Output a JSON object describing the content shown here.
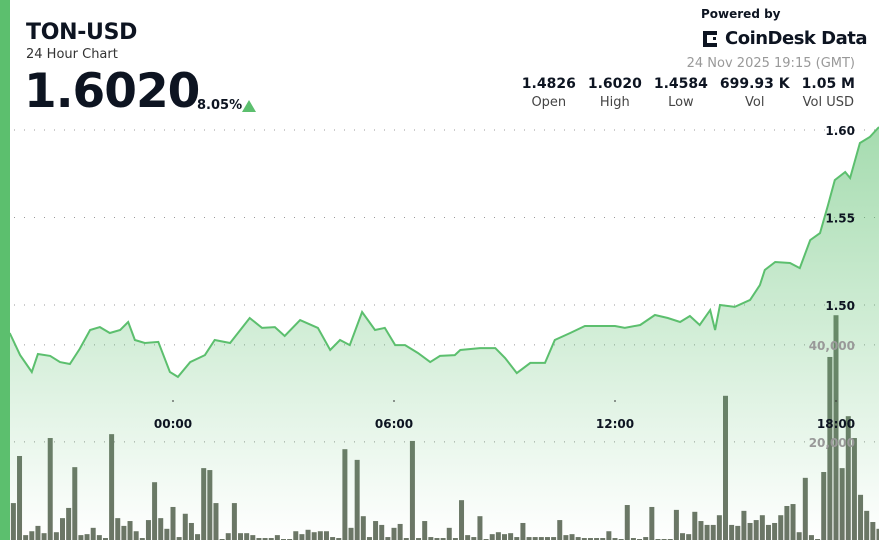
{
  "header": {
    "title": "TON-USD",
    "subtitle": "24 Hour Chart",
    "price": "1.6020",
    "change": "8.05%",
    "change_direction": "up",
    "powered_by": "Powered by",
    "brand": "CoinDesk Data",
    "timestamp": "24 Nov 2025 19:15 (GMT)",
    "stats": [
      {
        "value": "1.4826",
        "label": "Open"
      },
      {
        "value": "1.6020",
        "label": "High"
      },
      {
        "value": "1.4584",
        "label": "Low"
      },
      {
        "value": "699.93 K",
        "label": "Vol"
      },
      {
        "value": "1.05 M",
        "label": "Vol USD"
      }
    ]
  },
  "colors": {
    "accent": "#5cbf6e",
    "line": "#5cbf6e",
    "volume": "#6b7566",
    "text": "#0d1421"
  },
  "chart_data": {
    "type": "line",
    "grid": true,
    "price_axis": {
      "ticks": [
        "1.50",
        "1.55",
        "1.60"
      ],
      "tick_values": [
        1.5,
        1.55,
        1.6
      ]
    },
    "volume_axis": {
      "ticks": [
        "20,000",
        "40,000"
      ],
      "tick_values": [
        20000,
        40000
      ]
    },
    "x_ticks": [
      "00:00",
      "06:00",
      "12:00",
      "18:00"
    ],
    "price_series": {
      "times": [
        "19:34",
        "19:51",
        "20:10",
        "20:20",
        "20:40",
        "20:56",
        "21:12",
        "21:28",
        "21:45",
        "22:01",
        "22:17",
        "22:34",
        "22:47",
        "22:58",
        "23:14",
        "23:36",
        "23:55",
        "00:08",
        "00:28",
        "00:52",
        "01:08",
        "01:33",
        "02:05",
        "02:25",
        "02:46",
        "03:02",
        "03:27",
        "03:56",
        "04:16",
        "04:32",
        "04:48",
        "05:08",
        "05:29",
        "05:45",
        "06:02",
        "06:18",
        "06:39",
        "06:59",
        "07:15",
        "07:39",
        "07:48",
        "08:20",
        "08:45",
        "09:01",
        "09:20",
        "09:42",
        "10:06",
        "10:22",
        "10:47",
        "11:11",
        "11:36",
        "12:00",
        "12:16",
        "12:41",
        "13:05",
        "13:26",
        "13:46",
        "14:02",
        "14:18",
        "14:35",
        "14:43",
        "14:51",
        "15:15",
        "15:40",
        "15:56",
        "16:04",
        "16:21",
        "16:45",
        "17:01",
        "17:18",
        "17:34",
        "17:47",
        "17:58",
        "18:15",
        "18:23",
        "18:39",
        "18:55",
        "19:10"
      ],
      "values": [
        1.484,
        1.4714,
        1.4617,
        1.472,
        1.4709,
        1.4674,
        1.4663,
        1.4749,
        1.4857,
        1.4874,
        1.484,
        1.4857,
        1.4903,
        1.48,
        1.4783,
        1.4789,
        1.4617,
        1.4589,
        1.4674,
        1.4714,
        1.48,
        1.4783,
        1.4926,
        1.4869,
        1.4874,
        1.4823,
        1.4914,
        1.4869,
        1.4743,
        1.48,
        1.4771,
        1.496,
        1.4857,
        1.4869,
        1.4771,
        1.4771,
        1.4726,
        1.4674,
        1.4709,
        1.4714,
        1.4743,
        1.4754,
        1.4754,
        1.4697,
        1.4611,
        1.4669,
        1.4669,
        1.48,
        1.484,
        1.488,
        1.488,
        1.488,
        1.4869,
        1.4886,
        1.4943,
        1.4926,
        1.4903,
        1.4937,
        1.4886,
        1.4971,
        1.4857,
        1.5,
        1.4989,
        1.5029,
        1.5114,
        1.52,
        1.5246,
        1.524,
        1.5211,
        1.5371,
        1.5411,
        1.5571,
        1.5714,
        1.576,
        1.5726,
        1.5926,
        1.596,
        1.6017
      ]
    },
    "volume_series": {
      "interval_minutes": 10,
      "values": [
        1400,
        3900,
        9900,
        7400,
        17100,
        800,
        1600,
        2700,
        1200,
        20800,
        1400,
        4300,
        6400,
        14800,
        800,
        1000,
        2300,
        800,
        200,
        21600,
        4300,
        2700,
        3700,
        1600,
        200,
        3900,
        11700,
        4300,
        2100,
        6600,
        400,
        5200,
        3300,
        1000,
        14600,
        14200,
        7400,
        0,
        1200,
        7400,
        1200,
        1200,
        800,
        200,
        200,
        200,
        800,
        0,
        0,
        1600,
        1000,
        1900,
        1400,
        1600,
        1600,
        400,
        200,
        18500,
        2300,
        16300,
        4700,
        400,
        3700,
        2900,
        400,
        2300,
        3100,
        200,
        20200,
        200,
        3700,
        400,
        200,
        200,
        2300,
        200,
        8000,
        800,
        400,
        4700,
        0,
        1000,
        1400,
        1000,
        1200,
        400,
        3300,
        400,
        400,
        400,
        400,
        400,
        3900,
        800,
        1000,
        400,
        200,
        200,
        200,
        200,
        1600,
        200,
        0,
        7000,
        200,
        0,
        400,
        6600,
        0,
        0,
        0,
        6000,
        1200,
        1000,
        5600,
        3700,
        2900,
        2900,
        4900,
        29500,
        2900,
        2700,
        5800,
        3300,
        3900,
        4900,
        2900,
        3300,
        4900,
        6800,
        7200,
        1400,
        12600,
        800,
        0,
        13800,
        37500,
        46100,
        14600,
        25300,
        20800,
        9100,
        5800,
        3500,
        2100
      ]
    }
  }
}
